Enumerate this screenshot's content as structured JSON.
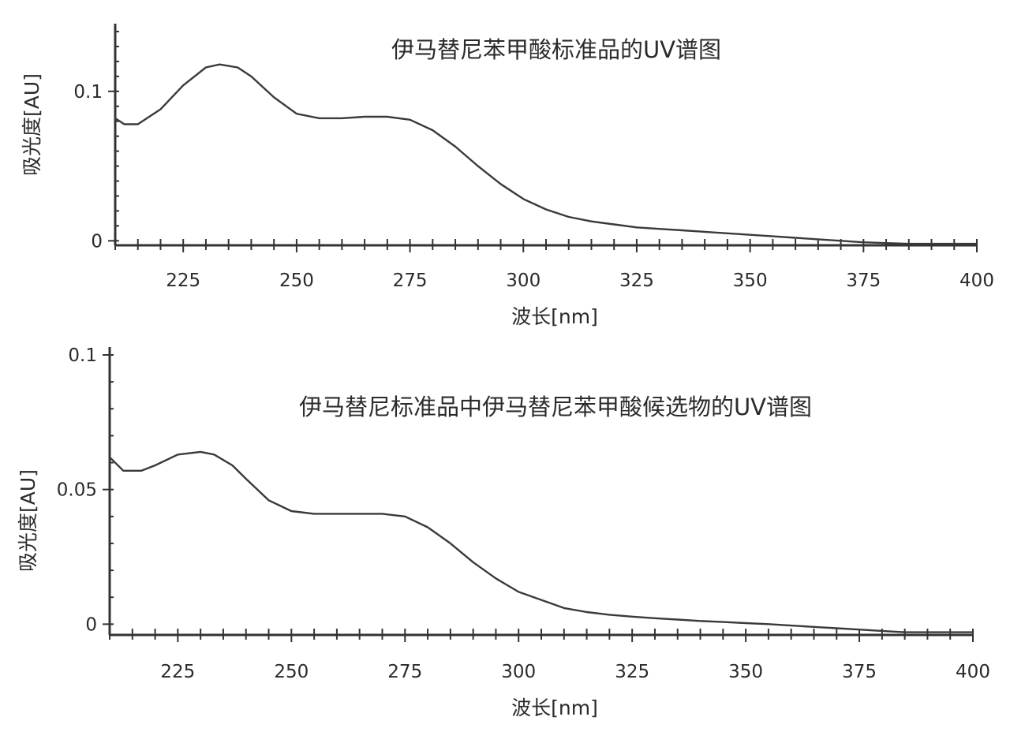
{
  "chart_data": [
    {
      "type": "line",
      "title": "伊马替尼苯甲酸标准品的UV谱图",
      "xlabel": "波长[nm]",
      "ylabel": "吸光度[AU]",
      "xlim": [
        210,
        400
      ],
      "ylim": [
        -0.003,
        0.14
      ],
      "x_ticks": [
        225,
        250,
        275,
        300,
        325,
        350,
        375,
        400
      ],
      "x_tick_labels": [
        "225",
        "250",
        "275",
        "300",
        "325",
        "350",
        "375",
        "400"
      ],
      "y_ticks": [
        0,
        0.1
      ],
      "y_tick_labels": [
        "0",
        "0.1"
      ],
      "grid": false,
      "legend": false,
      "series": [
        {
          "color": "#3a3a3a",
          "x": [
            210,
            212,
            215,
            220,
            225,
            230,
            233,
            237,
            240,
            245,
            250,
            255,
            260,
            265,
            270,
            275,
            280,
            285,
            290,
            295,
            300,
            305,
            310,
            315,
            320,
            325,
            330,
            335,
            340,
            345,
            350,
            355,
            360,
            365,
            370,
            375,
            380,
            385,
            390,
            395,
            400
          ],
          "values": [
            0.082,
            0.078,
            0.078,
            0.088,
            0.104,
            0.116,
            0.118,
            0.116,
            0.11,
            0.096,
            0.085,
            0.082,
            0.082,
            0.083,
            0.083,
            0.081,
            0.074,
            0.063,
            0.05,
            0.038,
            0.028,
            0.021,
            0.016,
            0.013,
            0.011,
            0.009,
            0.008,
            0.007,
            0.006,
            0.005,
            0.004,
            0.003,
            0.002,
            0.001,
            0.0,
            -0.001,
            -0.0015,
            -0.002,
            -0.002,
            -0.002,
            -0.002
          ]
        }
      ]
    },
    {
      "type": "line",
      "title": "伊马替尼标准品中伊马替尼苯甲酸候选物的UV谱图",
      "xlabel": "波长[nm]",
      "ylabel": "吸光度[AU]",
      "xlim": [
        210,
        400
      ],
      "ylim": [
        -0.004,
        0.1
      ],
      "x_ticks": [
        225,
        250,
        275,
        300,
        325,
        350,
        375,
        400
      ],
      "x_tick_labels": [
        "225",
        "250",
        "275",
        "300",
        "325",
        "350",
        "375",
        "400"
      ],
      "y_ticks": [
        0,
        0.05,
        0.1
      ],
      "y_tick_labels": [
        "0",
        "0.05",
        "0.1"
      ],
      "grid": false,
      "legend": false,
      "series": [
        {
          "color": "#3a3a3a",
          "x": [
            210,
            213,
            217,
            220,
            225,
            230,
            233,
            237,
            240,
            245,
            250,
            255,
            260,
            265,
            270,
            275,
            280,
            285,
            290,
            295,
            300,
            305,
            310,
            315,
            320,
            325,
            330,
            335,
            340,
            345,
            350,
            355,
            360,
            365,
            370,
            375,
            380,
            385,
            390,
            395,
            400
          ],
          "values": [
            0.062,
            0.057,
            0.057,
            0.059,
            0.063,
            0.064,
            0.063,
            0.059,
            0.054,
            0.046,
            0.042,
            0.041,
            0.041,
            0.041,
            0.041,
            0.04,
            0.036,
            0.03,
            0.023,
            0.017,
            0.012,
            0.009,
            0.006,
            0.0045,
            0.0035,
            0.0028,
            0.0022,
            0.0017,
            0.0012,
            0.0008,
            0.0004,
            0.0,
            -0.0005,
            -0.001,
            -0.0015,
            -0.002,
            -0.0025,
            -0.003,
            -0.003,
            -0.003,
            -0.003
          ]
        }
      ]
    }
  ]
}
